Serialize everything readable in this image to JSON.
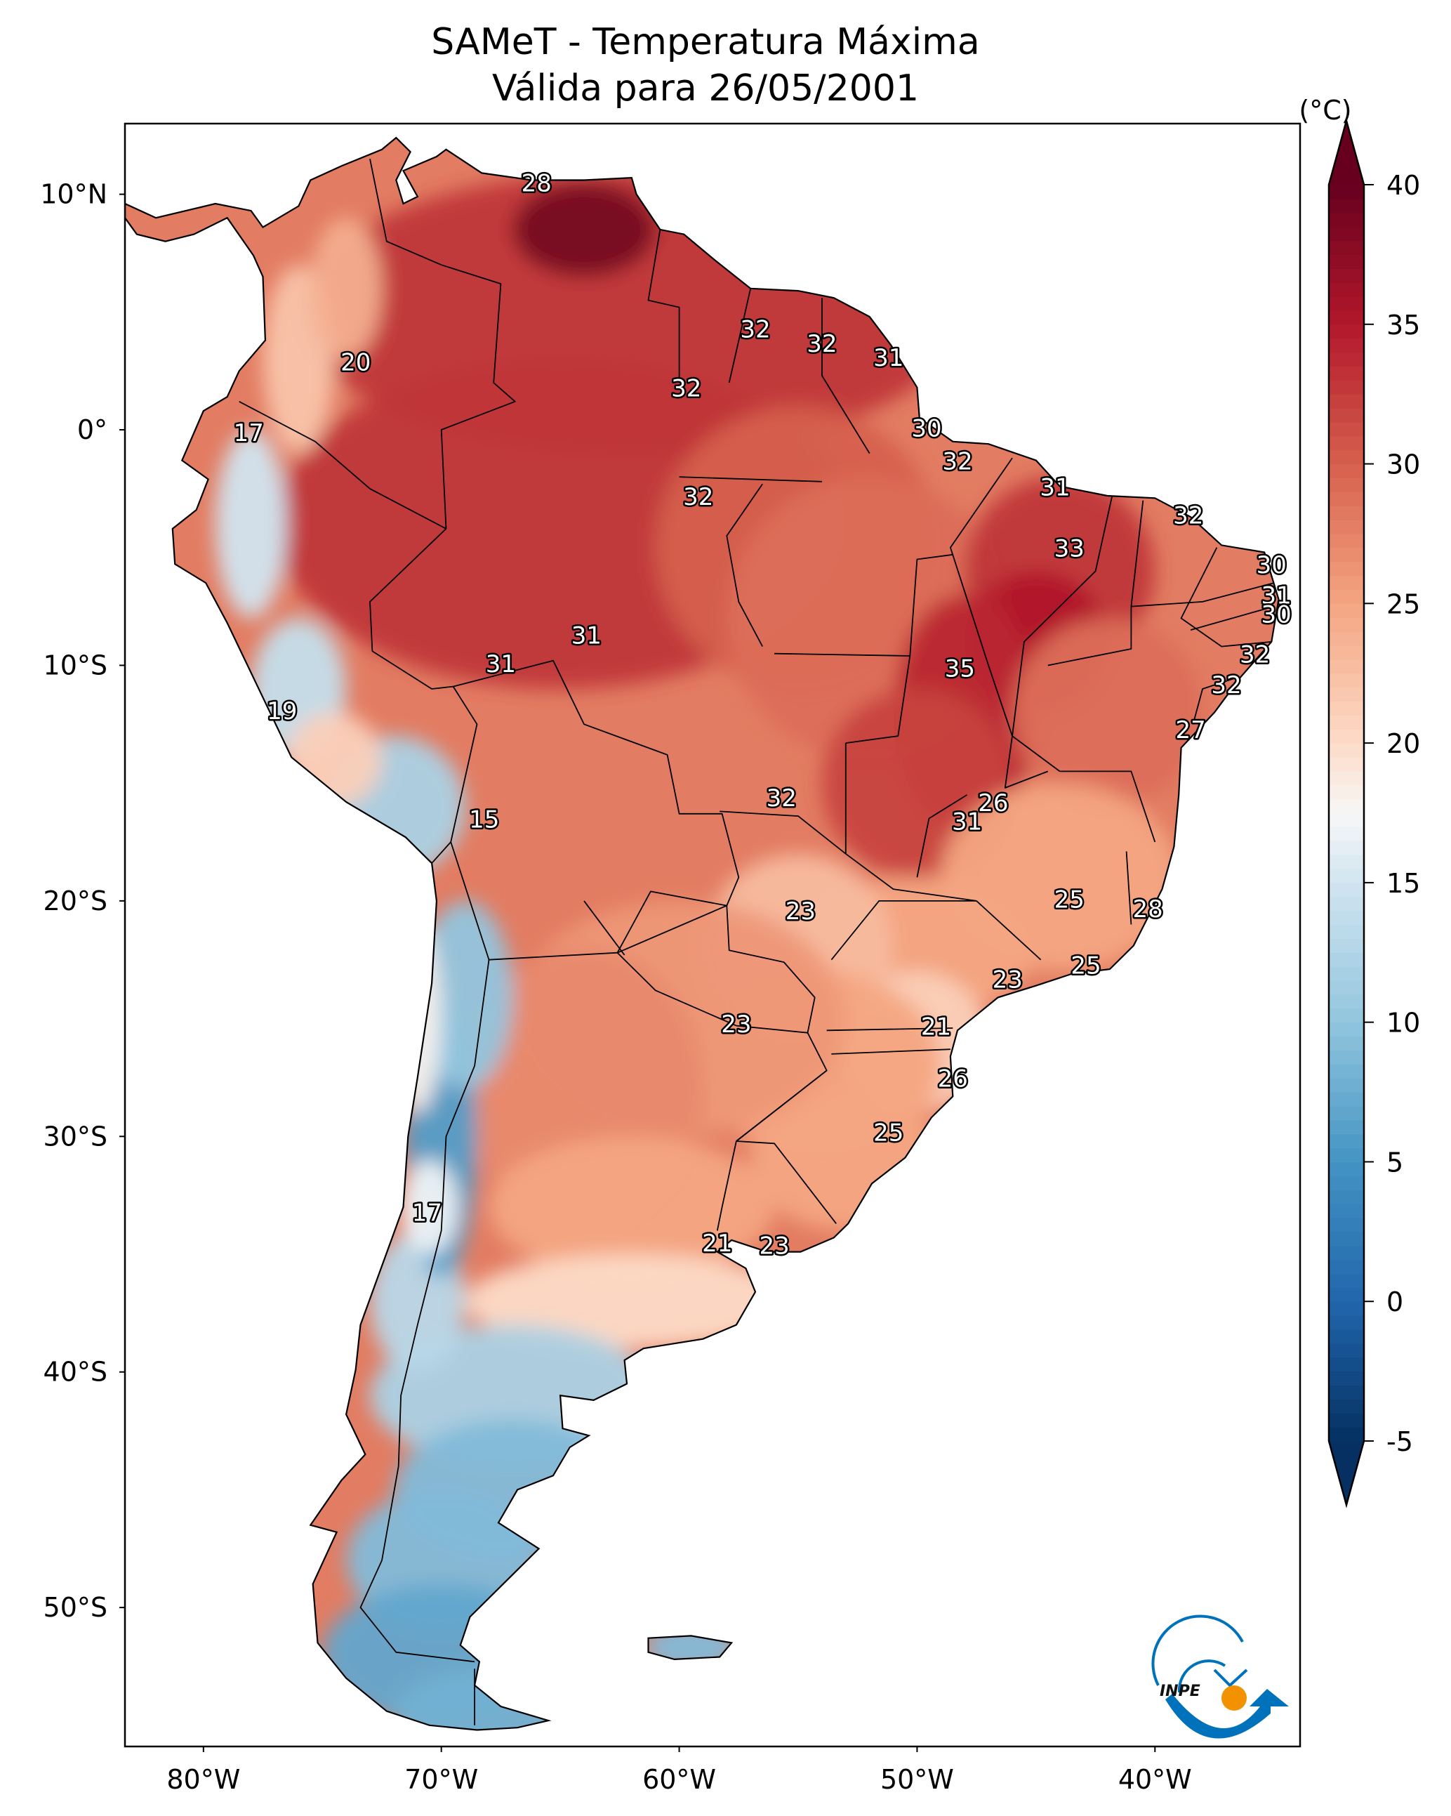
{
  "chart_data": {
    "type": "heatmap",
    "title": "SAMeT - Temperatura Máxima",
    "subtitle": "Válida para 26/05/2001",
    "variable": "Temperatura Máxima",
    "date": "26/05/2001",
    "units": "(°C)",
    "map_extent": {
      "lon": [
        -83.3,
        -33.9
      ],
      "lat": [
        13.0,
        -55.9
      ]
    },
    "x_ticks": [
      {
        "value": -80,
        "label": "80°W"
      },
      {
        "value": -70,
        "label": "70°W"
      },
      {
        "value": -60,
        "label": "60°W"
      },
      {
        "value": -50,
        "label": "50°W"
      },
      {
        "value": -40,
        "label": "40°W"
      }
    ],
    "y_ticks": [
      {
        "value": 10,
        "label": "10°N"
      },
      {
        "value": 0,
        "label": "0°"
      },
      {
        "value": -10,
        "label": "10°S"
      },
      {
        "value": -20,
        "label": "20°S"
      },
      {
        "value": -30,
        "label": "30°S"
      },
      {
        "value": -40,
        "label": "40°S"
      },
      {
        "value": -50,
        "label": "50°S"
      }
    ],
    "colorbar": {
      "label": "(°C)",
      "range": [
        -5,
        40
      ],
      "extend": "both",
      "ticks": [
        {
          "value": 40,
          "label": "40"
        },
        {
          "value": 35,
          "label": "35"
        },
        {
          "value": 30,
          "label": "30"
        },
        {
          "value": 25,
          "label": "25"
        },
        {
          "value": 20,
          "label": "20"
        },
        {
          "value": 15,
          "label": "15"
        },
        {
          "value": 10,
          "label": "10"
        },
        {
          "value": 5,
          "label": "5"
        },
        {
          "value": 0,
          "label": "0"
        },
        {
          "value": -5,
          "label": "-5"
        }
      ],
      "colormap": "RdBu_r",
      "color_stops": [
        {
          "value": -5,
          "color": "#053061"
        },
        {
          "value": 0,
          "color": "#2166ac"
        },
        {
          "value": 5,
          "color": "#4393c3"
        },
        {
          "value": 10,
          "color": "#92c5de"
        },
        {
          "value": 15,
          "color": "#d1e5f0"
        },
        {
          "value": 17.5,
          "color": "#f7f7f7"
        },
        {
          "value": 20,
          "color": "#fddbc7"
        },
        {
          "value": 25,
          "color": "#f4a582"
        },
        {
          "value": 30,
          "color": "#d6604d"
        },
        {
          "value": 35,
          "color": "#b2182b"
        },
        {
          "value": 40,
          "color": "#67001f"
        }
      ]
    },
    "station_labels": [
      {
        "lon": -66.0,
        "lat": 10.4,
        "value": "28"
      },
      {
        "lon": -56.8,
        "lat": 4.2,
        "value": "32"
      },
      {
        "lon": -54.0,
        "lat": 3.6,
        "value": "32"
      },
      {
        "lon": -51.2,
        "lat": 3.0,
        "value": "31"
      },
      {
        "lon": -73.6,
        "lat": 2.8,
        "value": "20"
      },
      {
        "lon": -59.7,
        "lat": 1.7,
        "value": "32"
      },
      {
        "lon": -78.1,
        "lat": -0.2,
        "value": "17"
      },
      {
        "lon": -49.6,
        "lat": 0.0,
        "value": "30"
      },
      {
        "lon": -48.3,
        "lat": -1.4,
        "value": "32"
      },
      {
        "lon": -44.2,
        "lat": -2.5,
        "value": "31"
      },
      {
        "lon": -59.2,
        "lat": -2.9,
        "value": "32"
      },
      {
        "lon": -38.6,
        "lat": -3.7,
        "value": "32"
      },
      {
        "lon": -43.6,
        "lat": -5.1,
        "value": "33"
      },
      {
        "lon": -35.1,
        "lat": -5.8,
        "value": "30"
      },
      {
        "lon": -34.9,
        "lat": -7.1,
        "value": "31"
      },
      {
        "lon": -34.9,
        "lat": -7.9,
        "value": "30"
      },
      {
        "lon": -63.9,
        "lat": -8.8,
        "value": "31"
      },
      {
        "lon": -35.8,
        "lat": -9.6,
        "value": "32"
      },
      {
        "lon": -67.5,
        "lat": -10.0,
        "value": "31"
      },
      {
        "lon": -48.2,
        "lat": -10.2,
        "value": "35"
      },
      {
        "lon": -37.0,
        "lat": -10.9,
        "value": "32"
      },
      {
        "lon": -76.7,
        "lat": -12.0,
        "value": "19"
      },
      {
        "lon": -38.5,
        "lat": -12.8,
        "value": "27"
      },
      {
        "lon": -46.8,
        "lat": -15.9,
        "value": "26"
      },
      {
        "lon": -55.7,
        "lat": -15.7,
        "value": "32"
      },
      {
        "lon": -68.2,
        "lat": -16.6,
        "value": "15"
      },
      {
        "lon": -47.9,
        "lat": -16.7,
        "value": "31"
      },
      {
        "lon": -43.6,
        "lat": -20.0,
        "value": "25"
      },
      {
        "lon": -54.9,
        "lat": -20.5,
        "value": "23"
      },
      {
        "lon": -40.3,
        "lat": -20.4,
        "value": "28"
      },
      {
        "lon": -42.9,
        "lat": -22.8,
        "value": "25"
      },
      {
        "lon": -46.2,
        "lat": -23.4,
        "value": "23"
      },
      {
        "lon": -57.6,
        "lat": -25.3,
        "value": "23"
      },
      {
        "lon": -49.2,
        "lat": -25.4,
        "value": "21"
      },
      {
        "lon": -48.5,
        "lat": -27.6,
        "value": "26"
      },
      {
        "lon": -51.2,
        "lat": -29.9,
        "value": "25"
      },
      {
        "lon": -70.6,
        "lat": -33.3,
        "value": "17"
      },
      {
        "lon": -58.4,
        "lat": -34.6,
        "value": "21"
      },
      {
        "lon": -56.0,
        "lat": -34.7,
        "value": "23"
      }
    ],
    "notes": "Gridded land-surface maximum temperature field over South America with country and Brazilian state borders."
  },
  "logo": {
    "text": "INPE",
    "colors": {
      "blue": "#0072bb",
      "orange": "#f39200"
    }
  }
}
